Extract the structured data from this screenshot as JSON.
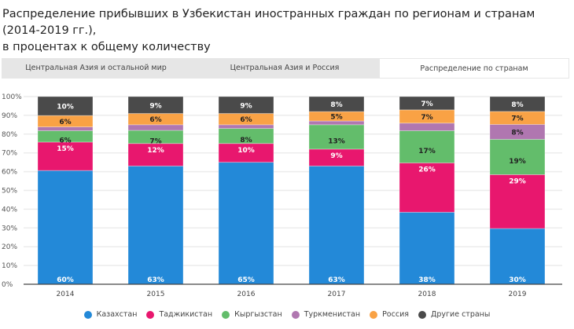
{
  "title_line1": "Распределение прибывших в Узбекистан иностранных граждан по регионам и странам  (2014-2019 гг.),",
  "title_line2": "в процентах к общему количеству",
  "tabs": [
    {
      "label": "Центральная Азия и остальной мир",
      "active": false
    },
    {
      "label": "Центральная Азия и Россия",
      "active": false
    },
    {
      "label": "Распределение по странам",
      "active": true
    }
  ],
  "chart_data": {
    "type": "bar",
    "stacked": true,
    "categories": [
      "2014",
      "2015",
      "2016",
      "2017",
      "2018",
      "2019"
    ],
    "ylim": [
      0,
      100
    ],
    "yticks": [
      "0%",
      "10%",
      "20%",
      "30%",
      "40%",
      "50%",
      "60%",
      "70%",
      "80%",
      "90%",
      "100%"
    ],
    "grid": true,
    "legend_position": "bottom",
    "series": [
      {
        "name": "Казахстан",
        "color": "#2389d8",
        "values": [
          60,
          63,
          65,
          63,
          38,
          30
        ]
      },
      {
        "name": "Таджикистан",
        "color": "#e8176e",
        "values": [
          15,
          12,
          10,
          9,
          26,
          29
        ]
      },
      {
        "name": "Кыргызстан",
        "color": "#63bd6b",
        "values": [
          6,
          7,
          8,
          13,
          17,
          19
        ]
      },
      {
        "name": "Туркменистан",
        "color": "#b077b0",
        "values": [
          2,
          3,
          2,
          2,
          4,
          8
        ]
      },
      {
        "name": "Россия",
        "color": "#f9a245",
        "values": [
          6,
          6,
          6,
          5,
          7,
          7
        ]
      },
      {
        "name": "Другие страны",
        "color": "#4a4a4a",
        "values": [
          10,
          9,
          9,
          8,
          7,
          8
        ]
      }
    ]
  }
}
